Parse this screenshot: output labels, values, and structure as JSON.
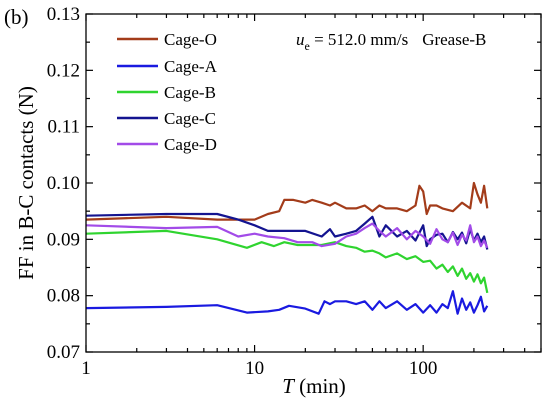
{
  "panel_label": "(b)",
  "chart_data": {
    "type": "line",
    "xlabel_italic": "T",
    "xlabel_rest": " (min)",
    "ylabel": "FF in B-C contacts (N)",
    "x_scale": "log",
    "xlim": [
      1,
      500
    ],
    "ylim": [
      0.07,
      0.13
    ],
    "x_ticks": [
      1,
      10,
      100
    ],
    "x_tick_labels": [
      "1",
      "10",
      "100"
    ],
    "y_ticks": [
      0.07,
      0.08,
      0.09,
      0.1,
      0.11,
      0.12,
      0.13
    ],
    "y_tick_labels": [
      "0.07",
      "0.08",
      "0.09",
      "0.10",
      "0.11",
      "0.12",
      "0.13"
    ],
    "grid": false,
    "legend_position": "top-left",
    "annotation": {
      "var": "u",
      "sub": "e",
      "text": " = 512.0 mm/s",
      "grease": "Grease-B"
    },
    "series": [
      {
        "name": "Cage-O",
        "color": "#a33c1a",
        "x": [
          1,
          3,
          6,
          10,
          12,
          14,
          15,
          17,
          20,
          22,
          25,
          28,
          30,
          35,
          40,
          45,
          50,
          55,
          60,
          70,
          80,
          90,
          95,
          100,
          105,
          110,
          120,
          130,
          150,
          170,
          190,
          200,
          210,
          220,
          230,
          240
        ],
        "y": [
          0.0935,
          0.094,
          0.0935,
          0.0935,
          0.0945,
          0.095,
          0.097,
          0.097,
          0.0965,
          0.097,
          0.0965,
          0.096,
          0.0965,
          0.0955,
          0.0955,
          0.096,
          0.095,
          0.096,
          0.0955,
          0.0955,
          0.095,
          0.096,
          0.0995,
          0.0985,
          0.0945,
          0.096,
          0.096,
          0.0955,
          0.095,
          0.0965,
          0.0955,
          0.1,
          0.098,
          0.0965,
          0.0995,
          0.0955
        ]
      },
      {
        "name": "Cage-A",
        "color": "#1a1ae0",
        "x": [
          1,
          3,
          6,
          9,
          12,
          14,
          16,
          20,
          24,
          26,
          28,
          30,
          35,
          40,
          45,
          50,
          55,
          60,
          70,
          80,
          90,
          100,
          110,
          120,
          130,
          140,
          150,
          160,
          170,
          180,
          190,
          200,
          210,
          220,
          230,
          240
        ],
        "y": [
          0.0778,
          0.078,
          0.0783,
          0.077,
          0.0772,
          0.0775,
          0.0782,
          0.0777,
          0.0768,
          0.079,
          0.0785,
          0.079,
          0.079,
          0.0785,
          0.079,
          0.0775,
          0.079,
          0.0778,
          0.079,
          0.0775,
          0.0785,
          0.077,
          0.0783,
          0.077,
          0.0785,
          0.0778,
          0.0808,
          0.0768,
          0.0795,
          0.0775,
          0.0788,
          0.077,
          0.0783,
          0.0798,
          0.0772,
          0.0782
        ]
      },
      {
        "name": "Cage-B",
        "color": "#2fd42f",
        "x": [
          1,
          3,
          6,
          9,
          11,
          13,
          15,
          18,
          20,
          25,
          30,
          35,
          40,
          45,
          50,
          55,
          60,
          70,
          80,
          90,
          100,
          110,
          120,
          130,
          140,
          150,
          160,
          170,
          180,
          190,
          200,
          210,
          220,
          230,
          240
        ],
        "y": [
          0.091,
          0.0915,
          0.09,
          0.0885,
          0.0895,
          0.0888,
          0.0895,
          0.089,
          0.089,
          0.089,
          0.0895,
          0.0888,
          0.0885,
          0.0878,
          0.088,
          0.0875,
          0.0868,
          0.0875,
          0.0865,
          0.087,
          0.086,
          0.0862,
          0.0848,
          0.0855,
          0.0842,
          0.0852,
          0.0835,
          0.0848,
          0.083,
          0.084,
          0.0825,
          0.0838,
          0.0822,
          0.0832,
          0.0805
        ]
      },
      {
        "name": "Cage-C",
        "color": "#141490",
        "x": [
          1,
          3,
          6,
          8,
          10,
          12,
          15,
          20,
          25,
          28,
          30,
          35,
          40,
          45,
          50,
          55,
          60,
          70,
          80,
          90,
          100,
          105,
          110,
          120,
          130,
          140,
          150,
          160,
          170,
          180,
          190,
          200,
          210,
          220,
          230,
          240
        ],
        "y": [
          0.0942,
          0.0945,
          0.0945,
          0.0935,
          0.0925,
          0.0915,
          0.0915,
          0.0915,
          0.0905,
          0.0918,
          0.0905,
          0.091,
          0.0915,
          0.0928,
          0.094,
          0.0905,
          0.0925,
          0.0905,
          0.0915,
          0.0898,
          0.0925,
          0.0888,
          0.09,
          0.0908,
          0.091,
          0.0895,
          0.0913,
          0.09,
          0.0912,
          0.0893,
          0.0918,
          0.0898,
          0.091,
          0.0895,
          0.0905,
          0.0882
        ]
      },
      {
        "name": "Cage-D",
        "color": "#a24be8",
        "x": [
          1,
          3,
          6,
          8,
          10,
          12,
          15,
          18,
          22,
          25,
          30,
          35,
          40,
          45,
          50,
          55,
          60,
          70,
          80,
          90,
          100,
          110,
          120,
          130,
          140,
          150,
          160,
          170,
          180,
          190,
          200,
          210,
          220,
          230,
          240
        ],
        "y": [
          0.0925,
          0.092,
          0.0922,
          0.0905,
          0.091,
          0.0905,
          0.0902,
          0.0895,
          0.0895,
          0.0888,
          0.0892,
          0.0905,
          0.091,
          0.092,
          0.0928,
          0.0915,
          0.0905,
          0.092,
          0.09,
          0.0915,
          0.0905,
          0.0892,
          0.0918,
          0.09,
          0.0895,
          0.0912,
          0.089,
          0.0908,
          0.0898,
          0.0925,
          0.0895,
          0.0905,
          0.0888,
          0.0898,
          0.0885
        ]
      }
    ]
  }
}
